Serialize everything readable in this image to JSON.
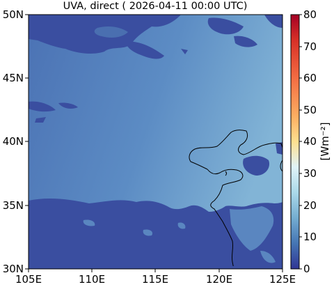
{
  "title": "UVA, direct ( 2026-04-11 00:00 UTC)",
  "colorbar": {
    "label": "[Wm⁻²]",
    "ticks": [
      "0",
      "10",
      "20",
      "30",
      "40",
      "50",
      "60",
      "70",
      "80"
    ],
    "range": [
      0,
      80
    ],
    "colormap": "RdYlBu_r"
  },
  "map": {
    "x_ticks": [
      "105E",
      "110E",
      "115E",
      "120E",
      "125E"
    ],
    "y_ticks": [
      "30N",
      "35N",
      "40N",
      "45N",
      "50N"
    ],
    "lon_range": [
      105,
      125
    ],
    "lat_range": [
      30,
      50
    ],
    "background_value_range": [
      5,
      15
    ],
    "cloud_value": 3,
    "colors": {
      "cloud": "#3a4fa0",
      "clear_left": "#4a75b6",
      "clear_right": "#7fb2d5",
      "coastline": "#000000"
    }
  }
}
